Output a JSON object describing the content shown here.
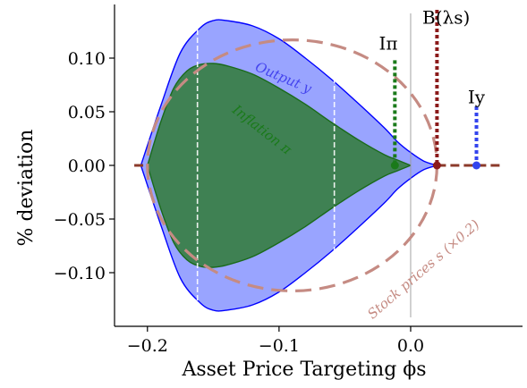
{
  "chart_data": {
    "type": "area",
    "xlabel": "Asset Price Targeting ϕs",
    "ylabel": "% deviation",
    "xlim": [
      -0.225,
      0.085
    ],
    "ylim": [
      -0.15,
      0.15
    ],
    "xticks": [
      -0.2,
      -0.1,
      0.0
    ],
    "xtick_labels": [
      "−0.2",
      "−0.1",
      "0.0"
    ],
    "yticks": [
      0.1,
      0.05,
      0.0,
      -0.05,
      -0.1
    ],
    "ytick_labels": [
      "0.10",
      "0.05",
      "0.00",
      "−0.05",
      "−0.10"
    ],
    "grid": false,
    "series": [
      {
        "name": "Output y",
        "color": "#0000ff",
        "x": [
          -0.205,
          -0.19,
          -0.175,
          -0.16,
          -0.15,
          -0.14,
          -0.12,
          -0.1,
          -0.08,
          -0.06,
          -0.04,
          -0.02,
          -0.01,
          0.0,
          0.01,
          0.02
        ],
        "upper": [
          0.0,
          0.055,
          0.105,
          0.128,
          0.135,
          0.135,
          0.13,
          0.118,
          0.1,
          0.08,
          0.058,
          0.035,
          0.022,
          0.012,
          0.004,
          0.0
        ],
        "lower": [
          0.0,
          -0.055,
          -0.105,
          -0.128,
          -0.135,
          -0.135,
          -0.13,
          -0.118,
          -0.1,
          -0.08,
          -0.058,
          -0.035,
          -0.022,
          -0.012,
          -0.004,
          0.0
        ]
      },
      {
        "name": "Inflation π",
        "color": "#1a7a1a",
        "x": [
          -0.2,
          -0.19,
          -0.18,
          -0.17,
          -0.16,
          -0.15,
          -0.14,
          -0.12,
          -0.1,
          -0.08,
          -0.06,
          -0.04,
          -0.02,
          -0.01,
          0.0
        ],
        "upper": [
          0.0,
          0.04,
          0.072,
          0.088,
          0.094,
          0.095,
          0.093,
          0.085,
          0.072,
          0.057,
          0.04,
          0.024,
          0.01,
          0.005,
          0.0
        ],
        "lower": [
          0.0,
          -0.04,
          -0.072,
          -0.088,
          -0.094,
          -0.095,
          -0.093,
          -0.085,
          -0.072,
          -0.057,
          -0.04,
          -0.024,
          -0.01,
          -0.005,
          0.0
        ]
      },
      {
        "name": "Stock prices s (×0.2)",
        "color": "#c58b83",
        "style": "dashed",
        "ellipse": {
          "center_x": -0.09,
          "center_y": 0.0,
          "radius_x": 0.11,
          "radius_y": 0.117
        },
        "tail_x": [
          -0.21,
          -0.2,
          0.02,
          0.07
        ]
      }
    ],
    "markers": [
      {
        "label": "Iπ",
        "x": -0.012,
        "y": 0.0,
        "line_top": 0.098,
        "color": "#1a7a1a",
        "label_x": -0.017,
        "label_y": 0.108
      },
      {
        "label": "B(λs)",
        "x": 0.02,
        "y": 0.0,
        "line_top": 0.145,
        "color": "#8b1a1a",
        "label_x": 0.027,
        "label_y": 0.132
      },
      {
        "label": "Iy",
        "x": 0.05,
        "y": 0.0,
        "line_top": 0.055,
        "color": "#3344ee",
        "label_x": 0.05,
        "label_y": 0.058
      }
    ],
    "vertical_lines": [
      {
        "x": -0.162,
        "color": "#ffffff"
      },
      {
        "x": -0.058,
        "color": "#ffffff"
      },
      {
        "x": 0.0,
        "color": "#999999"
      }
    ],
    "annotations": [
      {
        "text": "Output y",
        "x": -0.098,
        "y": 0.078,
        "rotation": 23,
        "color": "#4444ee"
      },
      {
        "text": "Inflation π",
        "x": -0.115,
        "y": 0.03,
        "rotation": 38,
        "color": "#1a7a1a"
      },
      {
        "text": "Stock prices s (×0.2)",
        "x": 0.012,
        "y": -0.1,
        "rotation": -41,
        "color": "#c58b83"
      }
    ]
  }
}
